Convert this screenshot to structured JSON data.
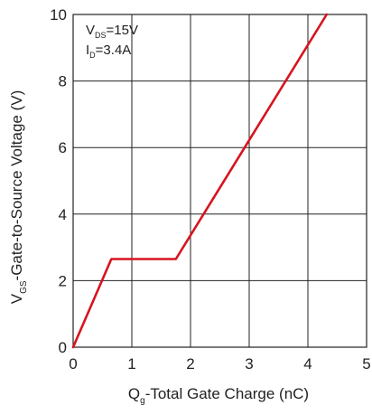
{
  "chart_data": {
    "type": "line",
    "xlim": [
      0,
      5
    ],
    "ylim": [
      0,
      10
    ],
    "x_ticks": [
      "0",
      "1",
      "2",
      "3",
      "4",
      "5"
    ],
    "y_ticks": [
      "0",
      "2",
      "4",
      "6",
      "8",
      "10"
    ],
    "grid": true,
    "xlabel": {
      "main": "Q",
      "sub": "g",
      "rest": "-Total Gate Charge (nC)"
    },
    "ylabel": {
      "main": "V",
      "sub": "GS",
      "rest": "-Gate-to-Source Voltage (V)"
    },
    "annotations": [
      {
        "main": "V",
        "sub": "DS",
        "rest": "=15V"
      },
      {
        "main": "I",
        "sub": "D",
        "rest": "=3.4A"
      }
    ],
    "series": [
      {
        "color": "#d7141f",
        "points": [
          [
            0,
            0
          ],
          [
            0.65,
            2.65
          ],
          [
            1.75,
            2.65
          ],
          [
            4.32,
            10
          ]
        ]
      }
    ]
  }
}
